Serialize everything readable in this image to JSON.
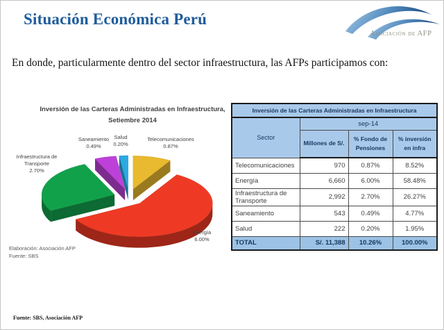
{
  "slide": {
    "title": "Situación Económica Perú",
    "logo_text": "Asociación de AFP",
    "body_text": "En donde, particularmente dentro del sector infraestructura, las AFPs participamos con:",
    "footer": "Fuente: SBS, Asociación AFP"
  },
  "chart_data": {
    "type": "pie",
    "style": "3d-exploded",
    "title": "Inversión de las Carteras Administradas en Infraestructura, Setiembre 2014",
    "title_lines": [
      "Inversión de las Carteras Administradas en Infraestructura,",
      "Setiembre 2014"
    ],
    "value_unit": "% del Fondo de Pensiones",
    "slices": [
      {
        "label": "Telecomunicaciones",
        "value": 0.87,
        "share_pct": 8.52,
        "color": "#e9b92f"
      },
      {
        "label": "Energía",
        "value": 6.0,
        "share_pct": 58.48,
        "color": "#ee3a24"
      },
      {
        "label": "Infraestructura de Transporte",
        "value": 2.7,
        "share_pct": 26.27,
        "color": "#12a14b"
      },
      {
        "label": "Saneamiento",
        "value": 0.49,
        "share_pct": 4.77,
        "color": "#bd41d9"
      },
      {
        "label": "Salud",
        "value": 0.2,
        "share_pct": 1.95,
        "color": "#2ba9e0"
      }
    ],
    "notes": [
      "Elaboración: Asociación AFP",
      "Fuente:  SBS"
    ]
  },
  "table": {
    "title": "Inversión de las Carteras Administradas en Infraestructura",
    "period_header": "sep-14",
    "columns": [
      "Sector",
      "Millones de S/.",
      "% Fondo de Pensiones",
      "% inversión en infra"
    ],
    "rows": [
      [
        "Telecomunicaciones",
        "970",
        "0.87%",
        "8.52%"
      ],
      [
        "Energía",
        "6,660",
        "6.00%",
        "58.48%"
      ],
      [
        "Infraestructura de Transporte",
        "2,992",
        "2.70%",
        "26.27%"
      ],
      [
        "Saneamiento",
        "543",
        "0.49%",
        "4.77%"
      ],
      [
        "Salud",
        "222",
        "0.20%",
        "1.95%"
      ]
    ],
    "total_row": [
      "TOTAL",
      "S/. 11,388",
      "10.26%",
      "100.00%"
    ],
    "colors": {
      "header_bg": "#a9c9ea",
      "total_bg": "#9cc3e5",
      "header_text": "#17365d",
      "title_text": "#1f5c9b"
    }
  }
}
